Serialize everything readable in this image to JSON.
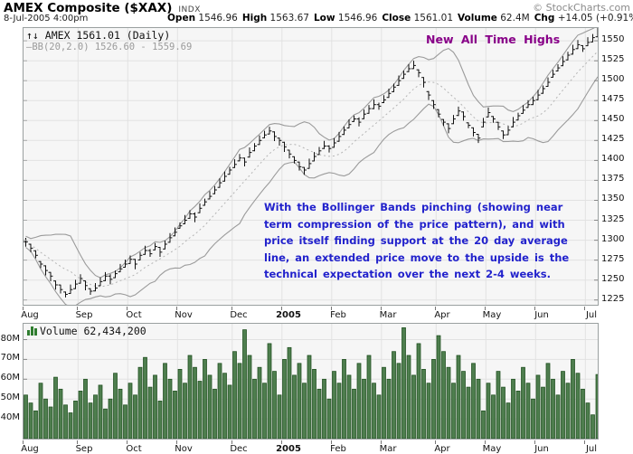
{
  "header": {
    "title": "AMEX Composite ($XAX)",
    "index_tag": "INDX",
    "brand": "© StockCharts.com",
    "datetime": "8-Jul-2005 4:00pm",
    "quote": {
      "open_label": "Open",
      "open": "1546.96",
      "high_label": "High",
      "high": "1563.67",
      "low_label": "Low",
      "low": "1546.96",
      "close_label": "Close",
      "close": "1561.01",
      "volume_label": "Volume",
      "volume": "62.4M",
      "chg_label": "Chg",
      "chg": "+14.05 (+0.91%)",
      "direction_icon": "up-triangle"
    }
  },
  "price_pane": {
    "legend_icon": "↑↓",
    "legend_line1": "AMEX 1561.01 (Daily)",
    "legend_line2": "—BB(20,2.0) 1526.60 - 1559.69",
    "annotation_highs": "New All Time Highs",
    "annotation_note_lines": [
      "With the Bollinger Bands pinching (showing near",
      "term compression of the price pattern), and with",
      "price itself finding support at the 20 day average",
      "line, an extended price move to the upside is the",
      "technical expectation over the next 2-4 weeks."
    ]
  },
  "volume_pane": {
    "legend": "Volume 62,434,200"
  },
  "colors": {
    "up_green": "#267326",
    "volume_fill": "#4e7e4e",
    "volume_stroke": "#1e4e1e",
    "bar_black": "#111111",
    "band_gray": "#9b9b9b",
    "mid_band_gray": "#b5b5b5",
    "grid_gray": "#e2e2e2",
    "annotation_purple": "#880088",
    "annotation_blue": "#2222cc"
  },
  "chart_data": {
    "type": "ohlc-bar",
    "title": "AMEX Composite ($XAX) Daily, Aug 2004 - Jul 2005",
    "overlay": {
      "name": "BB(20,2.0)",
      "latest_upper": 1559.69,
      "latest_lower": 1526.6
    },
    "latest": {
      "open": 1546.96,
      "high": 1563.67,
      "low": 1546.96,
      "close": 1561.01,
      "volume": 62434200,
      "change": "+14.05",
      "change_pct": "+0.91%"
    },
    "x_axis": {
      "months": [
        {
          "label": "Aug",
          "i": 0
        },
        {
          "label": "Sep",
          "i": 11
        },
        {
          "label": "Oct",
          "i": 21
        },
        {
          "label": "Nov",
          "i": 31
        },
        {
          "label": "Dec",
          "i": 42
        },
        {
          "label": "2005",
          "i": 52,
          "bold": true
        },
        {
          "label": "Feb",
          "i": 62
        },
        {
          "label": "Mar",
          "i": 72
        },
        {
          "label": "Apr",
          "i": 83
        },
        {
          "label": "May",
          "i": 93
        },
        {
          "label": "Jun",
          "i": 103
        },
        {
          "label": "Jul",
          "i": 113
        }
      ]
    },
    "price_axis": {
      "ticks": [
        1225,
        1250,
        1275,
        1300,
        1325,
        1350,
        1375,
        1400,
        1425,
        1450,
        1475,
        1500,
        1525,
        1550
      ],
      "range": [
        1219,
        1566
      ],
      "side": "right",
      "grid": true
    },
    "volume_axis": {
      "ticks": [
        40,
        50,
        60,
        70,
        80
      ],
      "tick_labels": [
        "40M",
        "50M",
        "60M",
        "70M",
        "80M"
      ],
      "range": [
        30,
        88
      ],
      "side": "left",
      "grid": true
    },
    "closes": [
      1298,
      1290,
      1281,
      1270,
      1262,
      1255,
      1244,
      1238,
      1232,
      1238,
      1245,
      1252,
      1243,
      1236,
      1240,
      1248,
      1255,
      1251,
      1258,
      1264,
      1270,
      1276,
      1270,
      1281,
      1287,
      1283,
      1292,
      1285,
      1295,
      1303,
      1310,
      1318,
      1325,
      1333,
      1329,
      1340,
      1348,
      1355,
      1363,
      1372,
      1380,
      1388,
      1395,
      1403,
      1398,
      1410,
      1418,
      1425,
      1432,
      1437,
      1430,
      1425,
      1417,
      1408,
      1400,
      1392,
      1388,
      1396,
      1405,
      1412,
      1418,
      1415,
      1422,
      1430,
      1438,
      1445,
      1452,
      1448,
      1458,
      1465,
      1470,
      1468,
      1476,
      1484,
      1492,
      1500,
      1508,
      1515,
      1519,
      1510,
      1498,
      1482,
      1470,
      1458,
      1448,
      1440,
      1452,
      1462,
      1455,
      1444,
      1435,
      1428,
      1448,
      1460,
      1452,
      1442,
      1432,
      1438,
      1448,
      1456,
      1463,
      1470,
      1475,
      1482,
      1490,
      1498,
      1508,
      1516,
      1524,
      1532,
      1539,
      1545,
      1540,
      1548,
      1554,
      1561
    ],
    "volumes_millions": [
      52,
      48,
      44,
      58,
      50,
      46,
      61,
      55,
      47,
      43,
      49,
      54,
      60,
      48,
      52,
      57,
      45,
      50,
      63,
      55,
      47,
      58,
      52,
      66,
      71,
      56,
      62,
      49,
      68,
      60,
      54,
      65,
      58,
      72,
      66,
      59,
      70,
      62,
      55,
      68,
      63,
      57,
      74,
      68,
      85,
      72,
      60,
      66,
      58,
      78,
      64,
      52,
      70,
      76,
      62,
      68,
      58,
      72,
      65,
      55,
      60,
      50,
      64,
      58,
      70,
      62,
      55,
      68,
      60,
      72,
      58,
      52,
      66,
      60,
      74,
      68,
      86,
      72,
      62,
      78,
      65,
      58,
      70,
      82,
      74,
      66,
      58,
      72,
      64,
      56,
      68,
      60,
      44,
      58,
      52,
      64,
      56,
      48,
      60,
      54,
      66,
      58,
      50,
      62,
      56,
      68,
      60,
      52,
      64,
      58,
      70,
      63,
      55,
      48,
      42,
      62.4
    ]
  }
}
